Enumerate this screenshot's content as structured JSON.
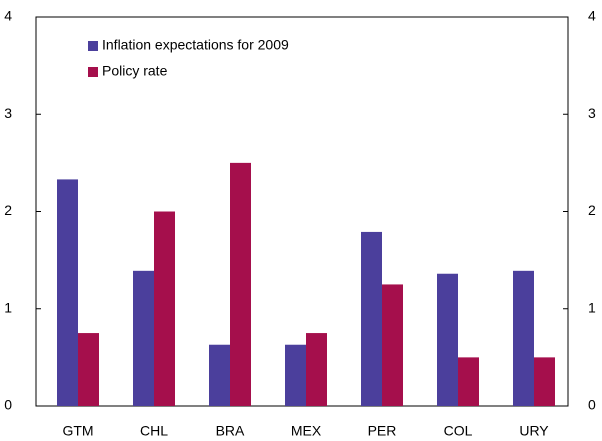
{
  "chart_data": {
    "type": "bar",
    "categories": [
      "GTM",
      "CHL",
      "BRA",
      "MEX",
      "PER",
      "COL",
      "URY"
    ],
    "series": [
      {
        "name": "Inflation expectations for 2009",
        "color": "#4b3f9c",
        "values": [
          2.33,
          1.39,
          0.63,
          0.63,
          1.79,
          1.36,
          1.39
        ]
      },
      {
        "name": "Policy rate",
        "color": "#a50f4c",
        "values": [
          0.75,
          2.0,
          2.5,
          0.75,
          1.25,
          0.5,
          0.5
        ]
      }
    ],
    "ylim": [
      0,
      4
    ],
    "yticks": [
      0,
      1,
      2,
      3,
      4
    ],
    "y2lim": [
      0,
      4
    ],
    "y2ticks": [
      0,
      1,
      2,
      3,
      4
    ],
    "grid": false,
    "legend": "top-left"
  }
}
